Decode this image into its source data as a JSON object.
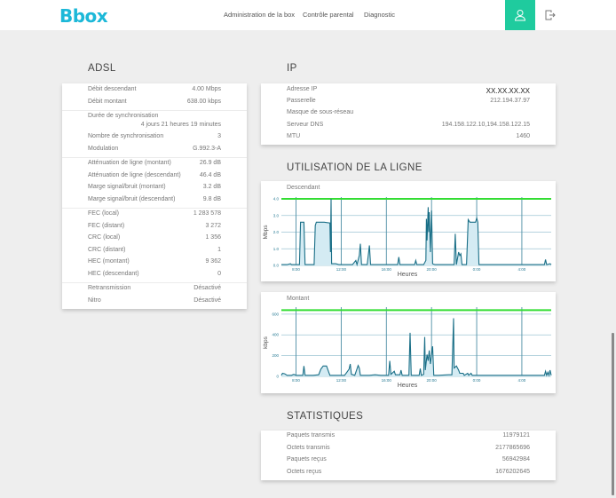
{
  "header": {
    "logo": "Bbox",
    "nav": [
      "Administration de la box",
      "Contrôle parental",
      "Diagnostic"
    ],
    "user_icon": "user-icon",
    "logout_icon": "logout-icon",
    "accent_color": "#1fcb9e",
    "logo_color": "#1cb8d8"
  },
  "adsl": {
    "title": "ADSL",
    "groups": [
      [
        {
          "label": "Débit descendant",
          "value": "4.00 Mbps"
        },
        {
          "label": "Débit montant",
          "value": "638.00 kbps"
        }
      ],
      [
        {
          "label": "Durée de synchronisation",
          "value": "4 jours 21 heures 19 minutes"
        },
        {
          "label": "Nombre de synchronisation",
          "value": "3"
        },
        {
          "label": "Modulation",
          "value": "G.992.3-A"
        }
      ],
      [
        {
          "label": "Atténuation de ligne (montant)",
          "value": "26.9 dB"
        },
        {
          "label": "Atténuation de ligne (descendant)",
          "value": "46.4 dB"
        },
        {
          "label": "Marge signal/bruit (montant)",
          "value": "3.2 dB"
        },
        {
          "label": "Marge signal/bruit (descendant)",
          "value": "9.8 dB"
        }
      ],
      [
        {
          "label": "FEC (local)",
          "value": "1 283 578"
        },
        {
          "label": "FEC (distant)",
          "value": "3 272"
        },
        {
          "label": "CRC (local)",
          "value": "1 356"
        },
        {
          "label": "CRC (distant)",
          "value": "1"
        },
        {
          "label": "HEC (montant)",
          "value": "9 362"
        },
        {
          "label": "HEC (descendant)",
          "value": "0"
        }
      ],
      [
        {
          "label": "Retransmission",
          "value": "Désactivé"
        },
        {
          "label": "Nitro",
          "value": "Désactivé"
        }
      ]
    ]
  },
  "ip": {
    "title": "IP",
    "rows": [
      {
        "label": "Adresse IP",
        "value": "XX.XX.XX.XX"
      },
      {
        "label": "Passerelle",
        "value": "212.194.37.97"
      },
      {
        "label": "Masque de sous-réseau",
        "value": ""
      },
      {
        "label": "Serveur DNS",
        "value": "194.158.122.10,194.158.122.15"
      },
      {
        "label": "MTU",
        "value": "1460"
      }
    ]
  },
  "line_usage": {
    "title": "UTILISATION DE LA LIGNE"
  },
  "statistics": {
    "title": "STATISTIQUES",
    "rows": [
      {
        "label": "Paquets transmis",
        "value": "11979121"
      },
      {
        "label": "Octets transmis",
        "value": "2177865696"
      },
      {
        "label": "Paquets reçus",
        "value": "56942984"
      },
      {
        "label": "Octets reçus",
        "value": "1676202645"
      }
    ]
  },
  "chart_data": [
    {
      "type": "area",
      "title": "Descendant",
      "xlabel": "Heures",
      "ylabel": "Mbps",
      "x_ticks": [
        "8:00",
        "12:00",
        "16:00",
        "20:00",
        "0:00",
        "4:00"
      ],
      "y_ticks": [
        "0.0",
        "1.0",
        "2.0",
        "3.0",
        "4.0"
      ],
      "ylim": [
        0,
        4
      ],
      "xlim_hours": [
        6.7,
        30.6
      ],
      "max_line": 4.0,
      "max_line_color": "#33dd33",
      "line_color": "#1a6f87",
      "fill_color": "#d4ebf3",
      "series": [
        {
          "name": "Descendant",
          "points": [
            [
              6.7,
              0.05
            ],
            [
              7.2,
              0.05
            ],
            [
              7.5,
              0.1
            ],
            [
              7.6,
              0.05
            ],
            [
              8.0,
              0.05
            ],
            [
              8.3,
              0.05
            ],
            [
              8.4,
              2.6
            ],
            [
              8.7,
              2.6
            ],
            [
              8.8,
              0.05
            ],
            [
              9.3,
              0.05
            ],
            [
              9.6,
              0.05
            ],
            [
              9.7,
              2.4
            ],
            [
              9.8,
              2.6
            ],
            [
              10.5,
              2.6
            ],
            [
              11.0,
              2.55
            ],
            [
              11.05,
              0.8
            ],
            [
              11.1,
              4.0
            ],
            [
              11.15,
              0.1
            ],
            [
              11.5,
              0.1
            ],
            [
              11.8,
              0.05
            ],
            [
              12.5,
              0.05
            ],
            [
              13.0,
              0.05
            ],
            [
              13.3,
              0.3
            ],
            [
              13.4,
              0.05
            ],
            [
              13.6,
              0.6
            ],
            [
              13.7,
              1.3
            ],
            [
              13.8,
              0.05
            ],
            [
              14.3,
              0.05
            ],
            [
              14.5,
              1.2
            ],
            [
              14.6,
              0.05
            ],
            [
              15.0,
              0.05
            ],
            [
              16.0,
              0.05
            ],
            [
              17.0,
              0.05
            ],
            [
              17.1,
              0.5
            ],
            [
              17.2,
              0.05
            ],
            [
              18.5,
              0.05
            ],
            [
              18.6,
              0.3
            ],
            [
              18.7,
              0.05
            ],
            [
              19.3,
              0.05
            ],
            [
              19.5,
              0.3
            ],
            [
              19.55,
              2.8
            ],
            [
              19.6,
              1.5
            ],
            [
              19.7,
              3.5
            ],
            [
              19.75,
              2.0
            ],
            [
              19.8,
              3.2
            ],
            [
              19.9,
              0.8
            ],
            [
              20.0,
              3.3
            ],
            [
              20.1,
              0.1
            ],
            [
              20.3,
              0.05
            ],
            [
              21.5,
              0.05
            ],
            [
              22.0,
              0.05
            ],
            [
              22.1,
              1.9
            ],
            [
              22.2,
              0.05
            ],
            [
              22.4,
              0.8
            ],
            [
              22.5,
              0.6
            ],
            [
              22.6,
              0.7
            ],
            [
              22.7,
              0.05
            ],
            [
              23.1,
              0.05
            ],
            [
              23.25,
              2.75
            ],
            [
              23.4,
              2.6
            ],
            [
              23.9,
              2.6
            ],
            [
              24.0,
              2.85
            ],
            [
              24.1,
              2.6
            ],
            [
              24.2,
              0.05
            ],
            [
              25.0,
              0.05
            ],
            [
              26.0,
              0.05
            ],
            [
              29.0,
              0.05
            ],
            [
              30.0,
              0.05
            ],
            [
              30.1,
              0.35
            ],
            [
              30.2,
              0.05
            ],
            [
              30.5,
              0.1
            ],
            [
              30.6,
              0.05
            ]
          ]
        }
      ]
    },
    {
      "type": "area",
      "title": "Montant",
      "xlabel": "Heures",
      "ylabel": "kbps",
      "x_ticks": [
        "8:00",
        "12:00",
        "16:00",
        "20:00",
        "0:00",
        "4:00"
      ],
      "y_ticks": [
        "0",
        "200",
        "400",
        "600"
      ],
      "ylim": [
        0,
        650
      ],
      "xlim_hours": [
        6.7,
        30.6
      ],
      "max_line": 638,
      "max_line_color": "#33dd33",
      "line_color": "#1a6f87",
      "fill_color": "#d4ebf3",
      "series": [
        {
          "name": "Montant",
          "points": [
            [
              6.7,
              10
            ],
            [
              6.8,
              30
            ],
            [
              7.0,
              25
            ],
            [
              7.2,
              10
            ],
            [
              7.6,
              10
            ],
            [
              7.8,
              20
            ],
            [
              8.0,
              10
            ],
            [
              8.6,
              10
            ],
            [
              8.7,
              100
            ],
            [
              8.8,
              10
            ],
            [
              9.5,
              10
            ],
            [
              10.0,
              15
            ],
            [
              10.2,
              70
            ],
            [
              10.4,
              100
            ],
            [
              10.7,
              100
            ],
            [
              10.9,
              40
            ],
            [
              11.0,
              10
            ],
            [
              12.0,
              10
            ],
            [
              12.3,
              10
            ],
            [
              12.5,
              40
            ],
            [
              12.7,
              70
            ],
            [
              12.8,
              120
            ],
            [
              12.9,
              20
            ],
            [
              13.2,
              10
            ],
            [
              13.5,
              105
            ],
            [
              13.6,
              80
            ],
            [
              13.7,
              10
            ],
            [
              14.5,
              10
            ],
            [
              15.0,
              15
            ],
            [
              15.5,
              10
            ],
            [
              16.2,
              10
            ],
            [
              16.3,
              150
            ],
            [
              16.4,
              20
            ],
            [
              16.7,
              50
            ],
            [
              16.8,
              15
            ],
            [
              17.2,
              15
            ],
            [
              17.3,
              60
            ],
            [
              17.4,
              10
            ],
            [
              18.0,
              10
            ],
            [
              18.1,
              420
            ],
            [
              18.2,
              10
            ],
            [
              18.9,
              10
            ],
            [
              19.0,
              75
            ],
            [
              19.1,
              10
            ],
            [
              19.3,
              20
            ],
            [
              19.4,
              380
            ],
            [
              19.45,
              60
            ],
            [
              19.6,
              210
            ],
            [
              19.7,
              150
            ],
            [
              19.8,
              250
            ],
            [
              19.9,
              120
            ],
            [
              20.1,
              290
            ],
            [
              20.2,
              10
            ],
            [
              20.6,
              10
            ],
            [
              21.5,
              15
            ],
            [
              21.8,
              15
            ],
            [
              21.85,
              180
            ],
            [
              21.95,
              560
            ],
            [
              22.0,
              80
            ],
            [
              22.2,
              100
            ],
            [
              22.4,
              60
            ],
            [
              22.5,
              30
            ],
            [
              22.8,
              30
            ],
            [
              22.9,
              10
            ],
            [
              23.2,
              30
            ],
            [
              23.3,
              10
            ],
            [
              23.5,
              30
            ],
            [
              23.6,
              10
            ],
            [
              25.0,
              10
            ],
            [
              27.0,
              10
            ],
            [
              29.0,
              10
            ],
            [
              30.0,
              10
            ],
            [
              30.1,
              50
            ],
            [
              30.2,
              10
            ],
            [
              30.3,
              40
            ],
            [
              30.4,
              10
            ],
            [
              30.5,
              60
            ],
            [
              30.6,
              10
            ]
          ]
        }
      ]
    }
  ]
}
